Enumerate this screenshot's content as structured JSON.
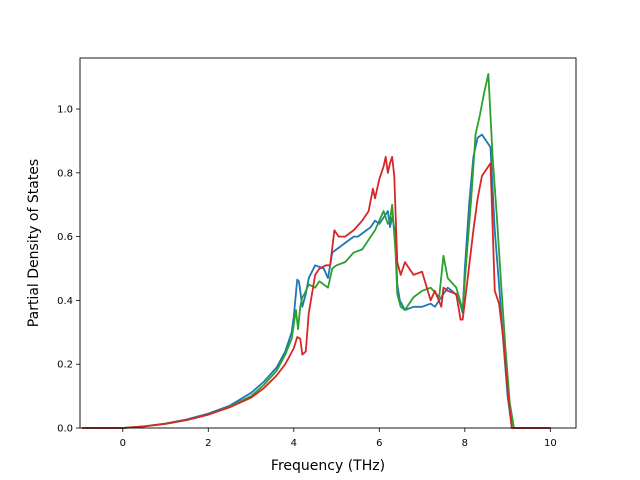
{
  "chart_data": {
    "type": "line",
    "title": "",
    "xlabel": "Frequency (THz)",
    "ylabel": "Partial Density of States",
    "xlim": [
      -1.0,
      10.6
    ],
    "ylim": [
      0.0,
      1.16
    ],
    "xticks": [
      0,
      2,
      4,
      6,
      8,
      10
    ],
    "yticks": [
      0.0,
      0.2,
      0.4,
      0.6,
      0.8,
      1.0
    ],
    "xtick_labels": [
      "0",
      "2",
      "4",
      "6",
      "8",
      "10"
    ],
    "ytick_labels": [
      "0.0",
      "0.2",
      "0.4",
      "0.6",
      "0.8",
      "1.0"
    ],
    "grid": false,
    "legend": "none",
    "series": [
      {
        "color": "#1f77b4",
        "x": [
          -0.95,
          -0.5,
          0,
          0.5,
          1.0,
          1.5,
          2.0,
          2.5,
          3.0,
          3.3,
          3.6,
          3.8,
          3.95,
          4.0,
          4.08,
          4.12,
          4.2,
          4.28,
          4.35,
          4.5,
          4.7,
          4.8,
          4.9,
          5.0,
          5.2,
          5.4,
          5.5,
          5.7,
          5.8,
          5.9,
          6.0,
          6.1,
          6.2,
          6.25,
          6.3,
          6.38,
          6.42,
          6.48,
          6.6,
          6.8,
          7.0,
          7.2,
          7.3,
          7.4,
          7.5,
          7.6,
          7.7,
          7.85,
          7.95,
          8.0,
          8.1,
          8.2,
          8.3,
          8.4,
          8.5,
          8.6,
          8.7,
          8.8,
          8.9,
          9.0,
          9.1,
          9.3,
          9.6,
          10.0
        ],
        "y": [
          0.0,
          0.0,
          0.0,
          0.005,
          0.014,
          0.027,
          0.045,
          0.07,
          0.11,
          0.145,
          0.19,
          0.24,
          0.3,
          0.35,
          0.465,
          0.46,
          0.38,
          0.42,
          0.47,
          0.51,
          0.5,
          0.47,
          0.55,
          0.56,
          0.58,
          0.6,
          0.6,
          0.62,
          0.63,
          0.65,
          0.64,
          0.66,
          0.68,
          0.63,
          0.66,
          0.61,
          0.45,
          0.4,
          0.37,
          0.38,
          0.38,
          0.39,
          0.38,
          0.4,
          0.42,
          0.44,
          0.43,
          0.41,
          0.36,
          0.5,
          0.7,
          0.85,
          0.91,
          0.92,
          0.9,
          0.88,
          0.62,
          0.45,
          0.27,
          0.1,
          0.0,
          0.0,
          0.0,
          0.0
        ]
      },
      {
        "color": "#2ca02c",
        "x": [
          -0.95,
          -0.5,
          0,
          0.5,
          1.0,
          1.5,
          2.0,
          2.5,
          3.0,
          3.3,
          3.6,
          3.8,
          3.95,
          4.05,
          4.1,
          4.15,
          4.2,
          4.25,
          4.35,
          4.5,
          4.6,
          4.7,
          4.8,
          4.9,
          5.0,
          5.2,
          5.4,
          5.6,
          5.8,
          5.9,
          6.0,
          6.1,
          6.2,
          6.25,
          6.3,
          6.38,
          6.42,
          6.5,
          6.6,
          6.8,
          7.0,
          7.2,
          7.4,
          7.5,
          7.6,
          7.8,
          7.95,
          8.05,
          8.15,
          8.25,
          8.35,
          8.45,
          8.55,
          8.65,
          8.75,
          8.85,
          8.95,
          9.05,
          9.15,
          9.3,
          9.6,
          10.0
        ],
        "y": [
          0.0,
          0.0,
          0.0,
          0.005,
          0.013,
          0.025,
          0.042,
          0.067,
          0.1,
          0.135,
          0.18,
          0.23,
          0.28,
          0.37,
          0.31,
          0.38,
          0.41,
          0.42,
          0.45,
          0.44,
          0.46,
          0.45,
          0.44,
          0.5,
          0.51,
          0.52,
          0.55,
          0.56,
          0.6,
          0.62,
          0.65,
          0.68,
          0.64,
          0.65,
          0.7,
          0.55,
          0.42,
          0.38,
          0.37,
          0.41,
          0.43,
          0.44,
          0.41,
          0.54,
          0.47,
          0.44,
          0.37,
          0.55,
          0.72,
          0.92,
          0.98,
          1.05,
          1.11,
          0.85,
          0.66,
          0.45,
          0.25,
          0.08,
          0.0,
          0.0,
          0.0,
          0.0
        ]
      },
      {
        "color": "#d62728",
        "x": [
          -0.95,
          -0.5,
          0,
          0.5,
          1.0,
          1.5,
          2.0,
          2.5,
          3.0,
          3.3,
          3.6,
          3.8,
          4.0,
          4.08,
          4.15,
          4.2,
          4.28,
          4.35,
          4.5,
          4.6,
          4.75,
          4.85,
          4.95,
          5.05,
          5.2,
          5.4,
          5.6,
          5.75,
          5.85,
          5.9,
          6.0,
          6.1,
          6.15,
          6.2,
          6.25,
          6.3,
          6.35,
          6.42,
          6.5,
          6.6,
          6.8,
          7.0,
          7.2,
          7.3,
          7.45,
          7.5,
          7.6,
          7.8,
          7.9,
          7.95,
          8.05,
          8.2,
          8.3,
          8.4,
          8.5,
          8.6,
          8.7,
          8.8,
          8.9,
          9.0,
          9.1,
          9.3,
          9.6,
          10.0
        ],
        "y": [
          0.0,
          0.0,
          0.0,
          0.005,
          0.013,
          0.025,
          0.042,
          0.065,
          0.095,
          0.125,
          0.165,
          0.2,
          0.25,
          0.285,
          0.28,
          0.23,
          0.24,
          0.36,
          0.48,
          0.5,
          0.51,
          0.51,
          0.62,
          0.6,
          0.6,
          0.62,
          0.65,
          0.68,
          0.75,
          0.72,
          0.78,
          0.82,
          0.85,
          0.8,
          0.83,
          0.85,
          0.79,
          0.52,
          0.48,
          0.52,
          0.48,
          0.49,
          0.4,
          0.43,
          0.38,
          0.44,
          0.43,
          0.42,
          0.34,
          0.34,
          0.45,
          0.62,
          0.72,
          0.79,
          0.81,
          0.83,
          0.43,
          0.39,
          0.28,
          0.12,
          0.0,
          0.0,
          0.0,
          0.0
        ]
      }
    ]
  }
}
